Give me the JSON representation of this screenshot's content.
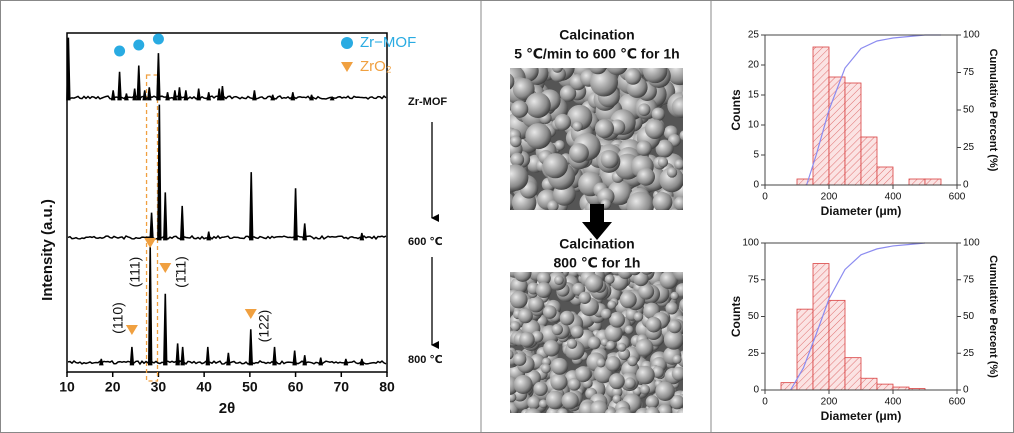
{
  "chart_data": [
    {
      "type": "xrd",
      "x_label": "2θ",
      "y_label": "Intensity (a.u.)",
      "xlim": [
        10,
        80
      ],
      "xticks": [
        10,
        20,
        30,
        40,
        50,
        60,
        70,
        80
      ],
      "series": [
        {
          "name": "Zr-MOF",
          "color": "#000000",
          "x": [
            10.3,
            20.1,
            21.5,
            23,
            24.8,
            25.7,
            27,
            28,
            30,
            32,
            33.6,
            34.6,
            36,
            38.8,
            41,
            43.3,
            44,
            51,
            55,
            59.4,
            63.5,
            68
          ],
          "values": [
            100,
            15,
            45,
            10,
            18,
            55,
            15,
            20,
            75,
            12,
            15,
            20,
            15,
            18,
            12,
            18,
            22,
            15,
            8,
            12,
            8,
            5
          ]
        },
        {
          "name": "600 ℃",
          "color": "#000000",
          "x": [
            28.5,
            30.2,
            31.5,
            35.2,
            41,
            50.3,
            60,
            62,
            74.5
          ],
          "values": [
            20,
            100,
            35,
            25,
            6,
            50,
            38,
            12,
            5
          ]
        },
        {
          "name": "800 ℃",
          "color": "#000000",
          "x": [
            17.5,
            24.2,
            28.2,
            31.5,
            34.2,
            35.3,
            40.8,
            45.3,
            50.2,
            55.4,
            59.8,
            62,
            65.5,
            71,
            74.5
          ],
          "values": [
            5,
            15,
            100,
            60,
            18,
            15,
            15,
            10,
            30,
            15,
            12,
            8,
            6,
            5,
            5
          ]
        }
      ],
      "legend": [
        {
          "name": "Zr−MOF",
          "color": "#29abe2",
          "marker": "circle"
        },
        {
          "name": "ZrO₂",
          "color": "#f0a040",
          "marker": "triangle"
        }
      ],
      "mof_marker_x": [
        21.5,
        25.7,
        30
      ],
      "zro2_marker_x": [
        28.2,
        31.5,
        24.2,
        50.2
      ],
      "annotations": [
        "(111)",
        "(1̄11)",
        "(110)",
        "(122)"
      ]
    },
    {
      "type": "histogram",
      "x_label": "Diameter (μm)",
      "y_label": "Counts",
      "y2_label": "Cumulative Percent (%)",
      "bins": [
        100,
        150,
        200,
        250,
        300,
        350,
        400,
        450,
        500,
        550
      ],
      "values": [
        1,
        23,
        18,
        17,
        8,
        3,
        0,
        1,
        1
      ],
      "color": "#d94040",
      "xlim": [
        0,
        600
      ],
      "xticks": [
        0,
        200,
        400,
        600
      ],
      "ylim": [
        0,
        25
      ],
      "yticks": [
        0,
        5,
        10,
        15,
        20,
        25
      ],
      "y2lim": [
        0,
        100
      ],
      "y2ticks": [
        0,
        25,
        50,
        75,
        100
      ],
      "cumulative": {
        "axis": "y2",
        "color": "#8c8cf0",
        "x": [
          130,
          160,
          200,
          250,
          300,
          350,
          400,
          450,
          500,
          550
        ],
        "values": [
          0,
          20,
          50,
          78,
          91,
          96,
          98,
          99,
          100,
          100
        ]
      }
    },
    {
      "type": "histogram",
      "x_label": "Diameter (μm)",
      "y_label": "Counts",
      "y2_label": "Cumulative Percent (%)",
      "bins": [
        50,
        100,
        150,
        200,
        250,
        300,
        350,
        400,
        450,
        500
      ],
      "values": [
        5,
        55,
        86,
        61,
        22,
        8,
        4,
        2,
        1
      ],
      "color": "#d94040",
      "xlim": [
        0,
        600
      ],
      "xticks": [
        0,
        200,
        400,
        600
      ],
      "ylim": [
        0,
        100
      ],
      "yticks": [
        0,
        25,
        50,
        75,
        100
      ],
      "y2lim": [
        0,
        100
      ],
      "y2ticks": [
        0,
        25,
        50,
        75,
        100
      ],
      "cumulative": {
        "axis": "y2",
        "color": "#8c8cf0",
        "x": [
          80,
          120,
          160,
          200,
          250,
          300,
          350,
          400,
          450,
          500
        ],
        "values": [
          0,
          15,
          38,
          62,
          82,
          92,
          96,
          98,
          99,
          100
        ]
      }
    }
  ],
  "images": {
    "top_caption": [
      "Calcination",
      "5 ℃/min to 600 ℃ for 1h"
    ],
    "bottom_caption": [
      "Calcination",
      "800 ℃ for 1h"
    ]
  }
}
